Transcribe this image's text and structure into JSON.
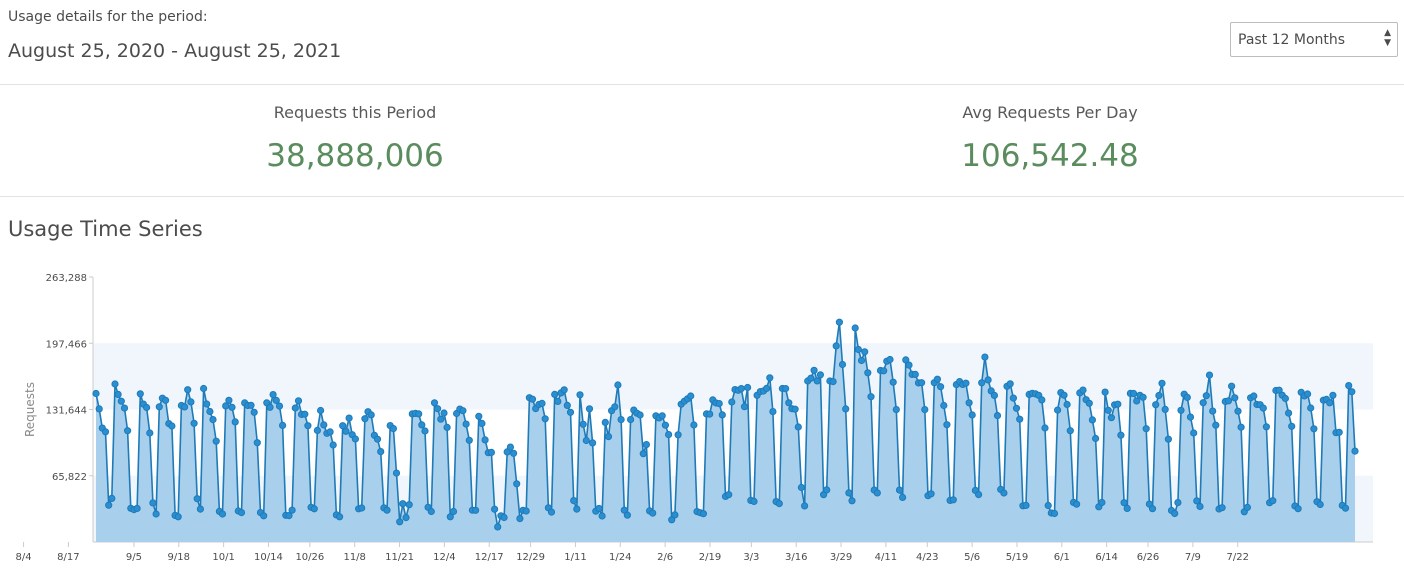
{
  "header": {
    "label": "Usage details for the period:",
    "range": "August 25, 2020 - August 25, 2021",
    "select": {
      "value": "Past 12 Months",
      "arrow_icon": "up-down-chevron-icon"
    }
  },
  "stats": {
    "requests_label": "Requests this Period",
    "requests_value": "38,888,006",
    "avg_label": "Avg Requests Per Day",
    "avg_value": "106,542.48",
    "value_color": "#5a8c5e"
  },
  "section_title": "Usage Time Series",
  "chart_data": {
    "type": "area",
    "ylabel": "Requests",
    "xlabel": "",
    "yticks": [
      65822,
      131644,
      197466,
      263288
    ],
    "ytick_labels": [
      "65,822",
      "131,644",
      "197,466",
      "263,288"
    ],
    "ylim": [
      0,
      263288
    ],
    "xtick_labels": [
      "9/5",
      "9/18",
      "10/1",
      "10/14",
      "10/26",
      "11/8",
      "11/21",
      "12/4",
      "12/17",
      "12/29",
      "1/11",
      "1/24",
      "2/6",
      "2/19",
      "3/3",
      "3/16",
      "3/29",
      "4/11",
      "4/23",
      "5/6",
      "5/19",
      "6/1",
      "6/14",
      "6/26",
      "7/9",
      "7/22",
      "8/4",
      "8/17"
    ],
    "x_start": "2020-08-25",
    "x_end": "2021-08-25",
    "line_color": "#1f7ab8",
    "fill_color": "#a8d0ec",
    "band_color": "#f1f6fc",
    "series": [
      {
        "values": [
          147500,
          132200,
          113200,
          109500,
          36600,
          43300,
          157000,
          146600,
          139900,
          133000,
          110600,
          33500,
          32200,
          33400,
          147200,
          137000,
          133600,
          108300,
          38800,
          27800,
          134300,
          142900,
          140800,
          117600,
          115300,
          26400,
          25000,
          135600,
          134200,
          151300,
          139200,
          117900,
          43000,
          32700,
          152500,
          137100,
          129700,
          121600,
          100100,
          30400,
          27800,
          135200,
          140800,
          133800,
          119300,
          30800,
          29200,
          138200,
          135600,
          135800,
          128900,
          98700,
          29200,
          26000,
          138300,
          133800,
          146400,
          140700,
          135000,
          115800,
          26500,
          26200,
          31600,
          133100,
          140300,
          126800,
          127000,
          115500,
          34500,
          33000,
          110900,
          130700,
          116300,
          108000,
          109400,
          96400,
          26900,
          25000,
          115500,
          110000,
          123100,
          106600,
          102300,
          33000,
          33800,
          122500,
          129500,
          126300,
          106000,
          102100,
          89800,
          33900,
          31600,
          115600,
          112700,
          68500,
          20100,
          38100,
          24200,
          37100,
          127300,
          127800,
          127300,
          116300,
          110300,
          34500,
          30300,
          138300,
          132400,
          122000,
          128200,
          113900,
          25000,
          30300,
          127700,
          132000,
          130500,
          117100,
          101000,
          31600,
          31500,
          124900,
          117800,
          101400,
          88700,
          89000,
          32600,
          15000,
          26000,
          24300,
          89500,
          94300,
          88100,
          57800,
          23200,
          31500,
          30800,
          143400,
          141900,
          132500,
          136600,
          137700,
          122400,
          34000,
          29700,
          146600,
          139700,
          148100,
          151200,
          135700,
          128900,
          41100,
          32700,
          146200,
          116900,
          100800,
          132300,
          98500,
          30600,
          33300,
          25800,
          118800,
          104700,
          130500,
          134300,
          156000,
          121600,
          31600,
          26600,
          121600,
          131000,
          128000,
          126200,
          87700,
          96800,
          30900,
          28700,
          125400,
          123300,
          125400,
          116000,
          106700,
          22100,
          26900,
          106500,
          136900,
          139900,
          142300,
          145100,
          116200,
          30200,
          29100,
          28100,
          127300,
          127100,
          141200,
          138100,
          137500,
          126300,
          45300,
          47000,
          139100,
          151400,
          150700,
          152400,
          134400,
          153500,
          41300,
          40300,
          145800,
          149400,
          150000,
          152600,
          163100,
          129600,
          40100,
          38200,
          152500,
          152400,
          138300,
          132400,
          131900,
          114300,
          54100,
          35900,
          160000,
          162700,
          170600,
          160100,
          166100,
          47000,
          51800,
          160000,
          159400,
          194800,
          218400,
          176400,
          132200,
          48800,
          40900,
          212600,
          191300,
          180300,
          189000,
          168100,
          144400,
          51600,
          48800,
          170400,
          170100,
          179600,
          181300,
          158800,
          131500,
          51600,
          44300,
          180900,
          175800,
          166500,
          166500,
          158100,
          158300,
          131500,
          46000,
          47900,
          158300,
          161700,
          154300,
          135600,
          116500,
          41300,
          41900,
          156400,
          159400,
          156500,
          157800,
          138300,
          126200,
          51300,
          47100,
          158200,
          183700,
          161100,
          150100,
          145700,
          125600,
          52300,
          48700,
          154700,
          157200,
          143000,
          132800,
          122000,
          36000,
          36400,
          146600,
          147700,
          147100,
          145800,
          141200,
          113300,
          36300,
          28800,
          28300,
          131000,
          148400,
          145900,
          136600,
          110600,
          39300,
          37600,
          148100,
          150900,
          141400,
          137800,
          121300,
          102800,
          35000,
          39200,
          148900,
          130800,
          123500,
          136300,
          136900,
          106100,
          39000,
          33400,
          147600,
          147500,
          140100,
          145800,
          143800,
          112600,
          37700,
          33100,
          136400,
          145600,
          157700,
          131700,
          102100,
          31300,
          28300,
          39100,
          130800,
          146800,
          143700,
          124100,
          108300,
          40800,
          35300,
          138400,
          145400,
          165800,
          130100,
          116000,
          32800,
          34100,
          139600,
          140300,
          154800,
          143300,
          130000,
          114100,
          30000,
          34400,
          143300,
          145100,
          136600,
          136400,
          133000,
          114500,
          39000,
          41000,
          150500,
          150800,
          145900,
          142600,
          128100,
          115000,
          35800,
          33100,
          148700,
          145200,
          147000,
          133100,
          112500,
          40000,
          37300,
          140900,
          141700,
          138300,
          145800,
          108600,
          109000,
          36400,
          33600,
          155400,
          149300,
          90300
        ]
      }
    ]
  }
}
